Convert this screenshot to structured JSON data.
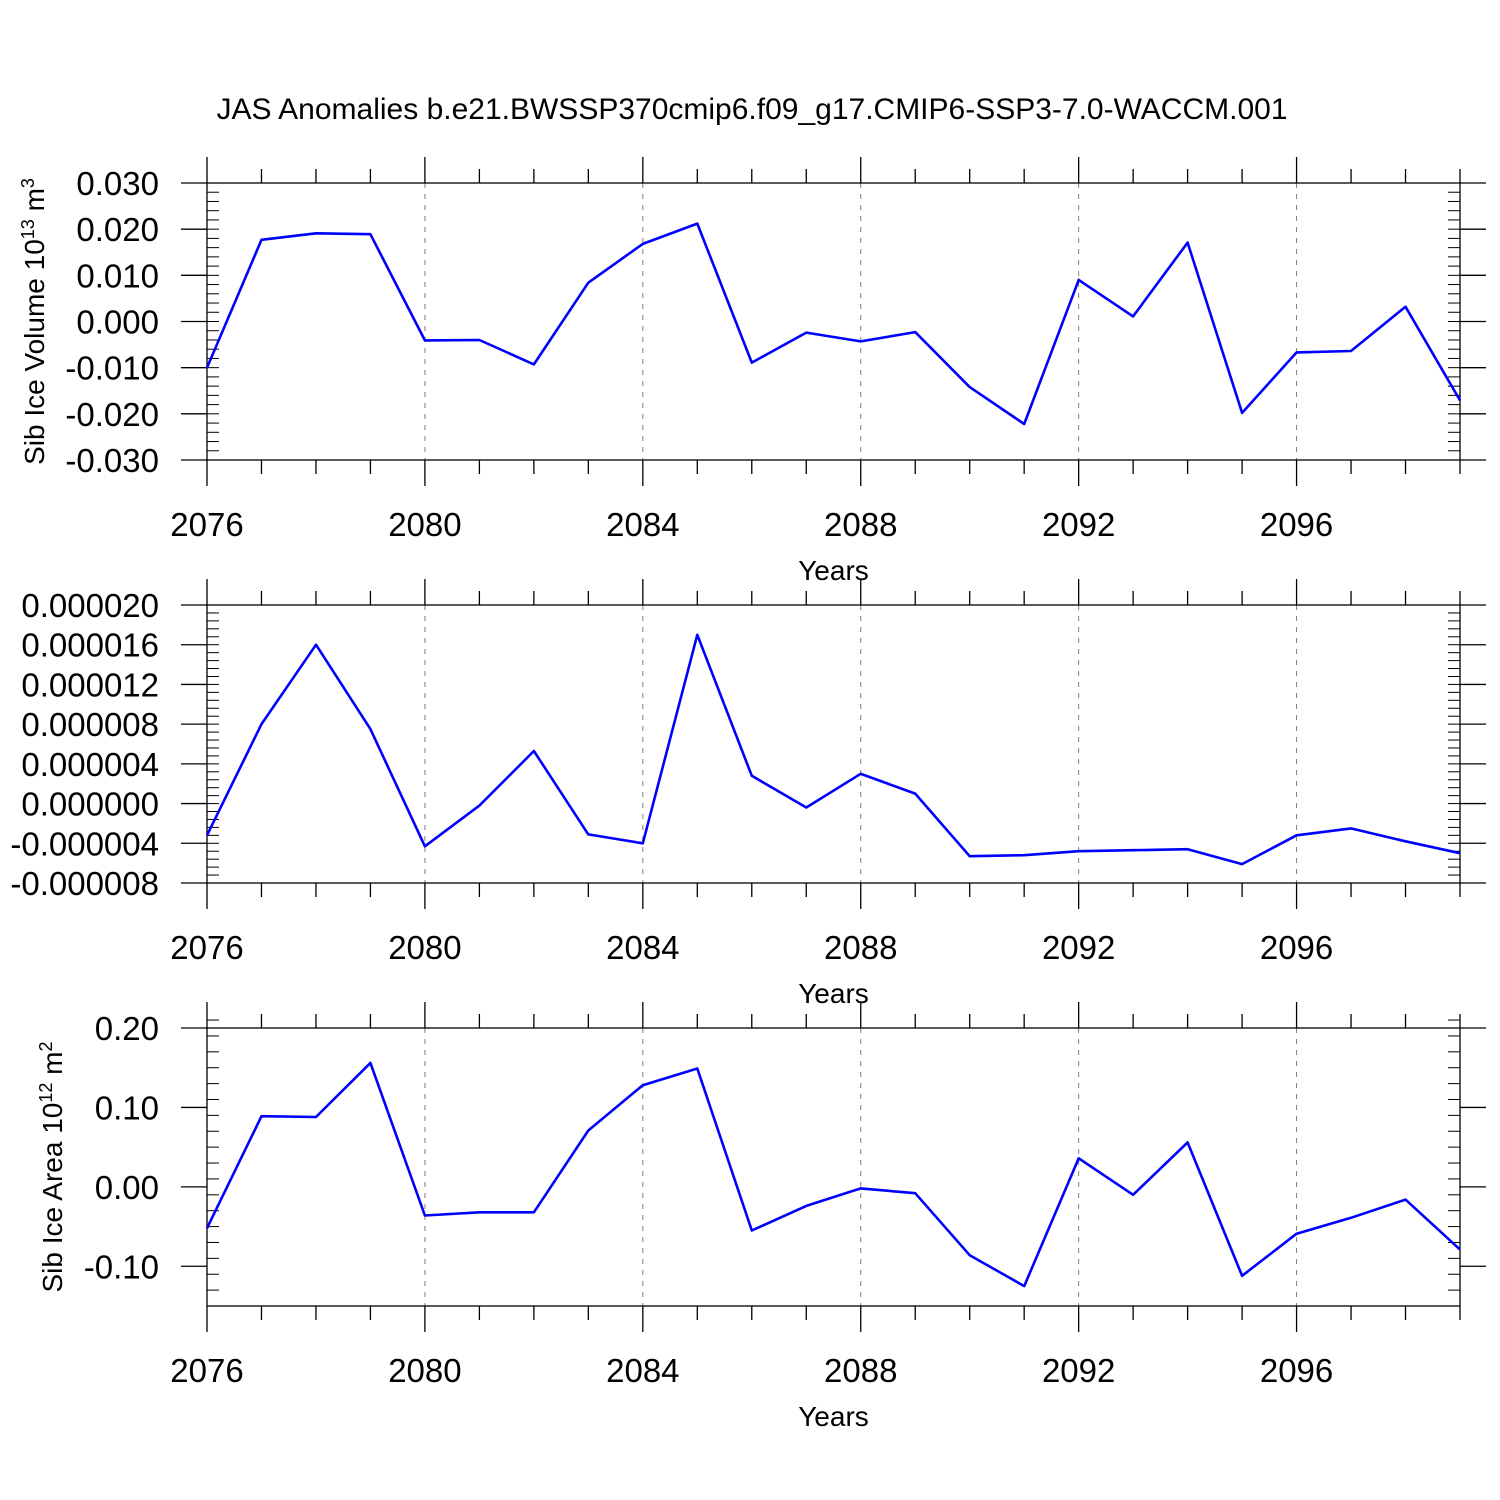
{
  "figure": {
    "title": "JAS Anomalies b.e21.BWSSP370cmip6.f09_g17.CMIP6-SSP3-7.0-WACCM.001",
    "line_color": "#0000ff"
  },
  "chart_data": [
    {
      "type": "line",
      "ylabel_main": "Sib Ice Volume 10",
      "ylabel_exp": "13",
      "ylabel_unit": " m",
      "ylabel_unit_exp": "3",
      "xlabel": "Years",
      "xlim": [
        2076,
        2099
      ],
      "ylim": [
        -0.03,
        0.03
      ],
      "x_ticks": [
        2076,
        2080,
        2084,
        2088,
        2092,
        2096
      ],
      "x_tick_labels": [
        "2076",
        "2080",
        "2084",
        "2088",
        "2092",
        "2096"
      ],
      "y_ticks": [
        -0.03,
        -0.02,
        -0.01,
        0,
        0.01,
        0.02,
        0.03
      ],
      "y_tick_labels": [
        "-0.030",
        "-0.020",
        "-0.010",
        "0.000",
        "0.010",
        "0.020",
        "0.030"
      ],
      "y_minor_step": 0.002,
      "grid": "vertical dashed at major x ticks",
      "series": [
        {
          "x": [
            2076,
            2077,
            2078,
            2079,
            2080,
            2081,
            2082,
            2083,
            2084,
            2085,
            2086,
            2087,
            2088,
            2089,
            2090,
            2091,
            2092,
            2093,
            2094,
            2095,
            2096,
            2097,
            2098,
            2099
          ],
          "values": [
            -0.01,
            0.0177,
            0.0191,
            0.0189,
            -0.0041,
            -0.004,
            -0.0093,
            0.0084,
            0.0168,
            0.0212,
            -0.0089,
            -0.0024,
            -0.0043,
            -0.0023,
            -0.0142,
            -0.0222,
            0.009,
            0.0011,
            0.0171,
            -0.0198,
            -0.0067,
            -0.0064,
            0.0032,
            -0.0171
          ]
        }
      ]
    },
    {
      "type": "line",
      "ylabel_main": "",
      "ylabel_exp": "",
      "ylabel_unit": "",
      "ylabel_unit_exp": "",
      "xlabel": "Years",
      "xlim": [
        2076,
        2099
      ],
      "ylim": [
        -8e-06,
        2e-05
      ],
      "x_ticks": [
        2076,
        2080,
        2084,
        2088,
        2092,
        2096
      ],
      "x_tick_labels": [
        "2076",
        "2080",
        "2084",
        "2088",
        "2092",
        "2096"
      ],
      "y_ticks": [
        -8e-06,
        -4e-06,
        0,
        4e-06,
        8e-06,
        1.2e-05,
        1.6e-05,
        2e-05
      ],
      "y_tick_labels": [
        "-0.000008",
        "-0.000004",
        "0.000000",
        "0.000004",
        "0.000008",
        "0.000012",
        "0.000016",
        "0.000020"
      ],
      "y_minor_step": 8e-07,
      "grid": "vertical dashed at major x ticks",
      "series": [
        {
          "x": [
            2076,
            2077,
            2078,
            2079,
            2080,
            2081,
            2082,
            2083,
            2084,
            2085,
            2086,
            2087,
            2088,
            2089,
            2090,
            2091,
            2092,
            2093,
            2094,
            2095,
            2096,
            2097,
            2098,
            2099
          ],
          "values": [
            -3.2e-06,
            8e-06,
            1.6e-05,
            7.5e-06,
            -4.3e-06,
            -2e-07,
            5.3e-06,
            -3.1e-06,
            -4e-06,
            1.7e-05,
            2.8e-06,
            -4e-07,
            3e-06,
            1e-06,
            -5.3e-06,
            -5.2e-06,
            -4.8e-06,
            -4.7e-06,
            -4.6e-06,
            -6.1e-06,
            -3.2e-06,
            -2.5e-06,
            -3.8e-06,
            -5e-06
          ]
        }
      ]
    },
    {
      "type": "line",
      "ylabel_main": "Sib Ice Area 10",
      "ylabel_exp": "12",
      "ylabel_unit": " m",
      "ylabel_unit_exp": "2",
      "xlabel": "Years",
      "xlim": [
        2076,
        2099
      ],
      "ylim": [
        -0.15,
        0.2
      ],
      "x_ticks": [
        2076,
        2080,
        2084,
        2088,
        2092,
        2096
      ],
      "x_tick_labels": [
        "2076",
        "2080",
        "2084",
        "2088",
        "2092",
        "2096"
      ],
      "y_ticks": [
        -0.1,
        0,
        0.1,
        0.2
      ],
      "y_tick_labels": [
        "-0.10",
        "0.00",
        "0.10",
        "0.20"
      ],
      "y_minor_step": 0.02,
      "grid": "vertical dashed at major x ticks",
      "series": [
        {
          "x": [
            2076,
            2077,
            2078,
            2079,
            2080,
            2081,
            2082,
            2083,
            2084,
            2085,
            2086,
            2087,
            2088,
            2089,
            2090,
            2091,
            2092,
            2093,
            2094,
            2095,
            2096,
            2097,
            2098,
            2099
          ],
          "values": [
            -0.052,
            0.089,
            0.088,
            0.156,
            -0.036,
            -0.032,
            -0.032,
            0.071,
            0.128,
            0.149,
            -0.055,
            -0.024,
            -0.002,
            -0.008,
            -0.086,
            -0.125,
            0.036,
            -0.01,
            0.056,
            -0.112,
            -0.059,
            -0.039,
            -0.016,
            -0.079
          ]
        }
      ]
    }
  ]
}
